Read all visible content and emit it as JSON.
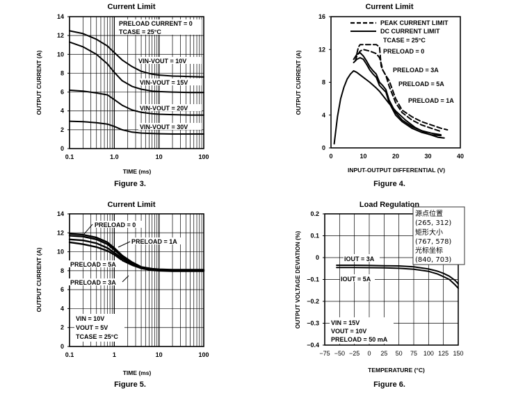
{
  "chart_data": [
    {
      "id": "fig3",
      "type": "line",
      "title": "Current Limit",
      "figure_label": "Figure 3.",
      "xlabel": "TIME (ms)",
      "ylabel": "OUTPUT CURRENT (A)",
      "xscale": "log",
      "xlim": [
        0.1,
        100
      ],
      "ylim": [
        0,
        14
      ],
      "xticks": [
        {
          "v": 0.1,
          "t": "0.1"
        },
        {
          "v": 1,
          "t": "1.0"
        },
        {
          "v": 10,
          "t": "10"
        },
        {
          "v": 100,
          "t": "100"
        }
      ],
      "yticks": [
        {
          "v": 0,
          "t": "0"
        },
        {
          "v": 2,
          "t": "2"
        },
        {
          "v": 4,
          "t": "4"
        },
        {
          "v": 6,
          "t": "6"
        },
        {
          "v": 8,
          "t": "8"
        },
        {
          "v": 10,
          "t": "10"
        },
        {
          "v": 12,
          "t": "12"
        },
        {
          "v": 14,
          "t": "14"
        }
      ],
      "conditions": [
        "PRELOAD CURRENT = 0",
        "TCASE = 25°C"
      ],
      "series": [
        {
          "name": "VIN-VOUT = 10V",
          "label": "VIN-VOUT = 10V",
          "x": [
            0.1,
            0.2,
            0.4,
            0.7,
            1.0,
            1.5,
            2.5,
            4,
            7,
            10,
            20,
            50,
            100
          ],
          "values": [
            12.5,
            12.2,
            11.6,
            10.9,
            10.2,
            9.4,
            8.7,
            8.2,
            7.9,
            7.8,
            7.7,
            7.65,
            7.6
          ]
        },
        {
          "name": "VIN-VOUT = 15V",
          "label": "VIN-VOUT = 15V",
          "x": [
            0.1,
            0.2,
            0.4,
            0.7,
            1.0,
            1.5,
            2.5,
            4,
            7,
            10,
            20,
            50,
            100
          ],
          "values": [
            11.3,
            10.8,
            10.0,
            9.0,
            8.1,
            7.2,
            6.6,
            6.3,
            6.1,
            6.05,
            6.0,
            5.95,
            5.95
          ]
        },
        {
          "name": "VIN-VOUT = 20V",
          "label": "VIN-VOUT = 20V",
          "x": [
            0.1,
            0.2,
            0.4,
            0.7,
            1.0,
            1.5,
            2.5,
            4,
            7,
            10,
            20,
            50,
            100
          ],
          "values": [
            6.2,
            6.1,
            5.9,
            5.7,
            5.2,
            4.6,
            4.1,
            3.85,
            3.7,
            3.65,
            3.6,
            3.55,
            3.55
          ]
        },
        {
          "name": "VIN-VOUT = 30V",
          "label": "VIN-VOUT = 30V",
          "x": [
            0.1,
            0.2,
            0.4,
            0.7,
            1.0,
            1.5,
            2.5,
            4,
            7,
            10,
            20,
            50,
            100
          ],
          "values": [
            2.9,
            2.85,
            2.75,
            2.6,
            2.35,
            2.0,
            1.75,
            1.65,
            1.6,
            1.58,
            1.55,
            1.55,
            1.55
          ]
        }
      ]
    },
    {
      "id": "fig4",
      "type": "line",
      "title": "Current Limit",
      "figure_label": "Figure 4.",
      "xlabel": "INPUT-OUTPUT DIFFERENTIAL (V)",
      "ylabel": "OUTPUT CURRENT (A)",
      "xscale": "linear",
      "xlim": [
        0,
        40
      ],
      "ylim": [
        0,
        16
      ],
      "xticks": [
        {
          "v": 0,
          "t": "0"
        },
        {
          "v": 10,
          "t": "10"
        },
        {
          "v": 20,
          "t": "20"
        },
        {
          "v": 30,
          "t": "30"
        },
        {
          "v": 40,
          "t": "40"
        }
      ],
      "yticks": [
        {
          "v": 0,
          "t": "0"
        },
        {
          "v": 4,
          "t": "4"
        },
        {
          "v": 8,
          "t": "8"
        },
        {
          "v": 12,
          "t": "12"
        },
        {
          "v": 16,
          "t": "16"
        }
      ],
      "legend": [
        "PEAK CURRENT LIMIT",
        "DC CURRENT LIMIT"
      ],
      "conditions": [
        "TCASE = 25°C"
      ],
      "annotations": [
        "PRELOAD = 0",
        "PRELOAD = 3A",
        "PRELOAD = 5A",
        "PRELOAD = 1A"
      ],
      "series": [
        {
          "name": "DC PRELOAD = 0",
          "style": "solid",
          "x": [
            1,
            2,
            3,
            4,
            5,
            6,
            7,
            8,
            9,
            10,
            12,
            14,
            15,
            16,
            18,
            20,
            23,
            26,
            30,
            33,
            35
          ],
          "values": [
            0.5,
            3.8,
            6.0,
            7.4,
            8.4,
            9.0,
            9.4,
            9.2,
            8.9,
            8.6,
            8.0,
            7.3,
            6.9,
            6.4,
            5.4,
            4.5,
            3.4,
            2.5,
            1.7,
            1.3,
            1.2
          ]
        },
        {
          "name": "DC PRELOAD = 3A",
          "style": "solid",
          "x": [
            7,
            8,
            9,
            10,
            11,
            12,
            13,
            14,
            15,
            16,
            17,
            18,
            20,
            22,
            25,
            28,
            31,
            34
          ],
          "values": [
            10.4,
            10.8,
            11.0,
            10.8,
            10.2,
            9.5,
            9.0,
            8.6,
            7.6,
            7.2,
            6.8,
            5.5,
            4.0,
            3.2,
            2.4,
            1.9,
            1.6,
            1.5
          ]
        },
        {
          "name": "DC PRELOAD = 5A",
          "style": "solid",
          "x": [
            7,
            8,
            9,
            10,
            11,
            12,
            13,
            14,
            15,
            16,
            17,
            18,
            20,
            22,
            25,
            28,
            31,
            34
          ],
          "values": [
            10.8,
            11.4,
            11.6,
            11.2,
            10.6,
            9.9,
            9.4,
            9.0,
            8.0,
            7.6,
            7.1,
            5.8,
            4.3,
            3.4,
            2.6,
            2.1,
            1.8,
            1.6
          ]
        },
        {
          "name": "PEAK PRELOAD = 0",
          "style": "dashed",
          "x": [
            7.5,
            8,
            9,
            10,
            12,
            14,
            15,
            15.6,
            16,
            17,
            18,
            20,
            22,
            25,
            28,
            31,
            34,
            36
          ],
          "values": [
            10.6,
            11.2,
            11.8,
            12.0,
            11.8,
            11.5,
            11.0,
            10.2,
            9.5,
            8.8,
            8.2,
            6.0,
            4.6,
            3.8,
            3.2,
            2.8,
            2.4,
            2.2
          ]
        },
        {
          "name": "PEAK PRELOAD = 1A",
          "style": "dashed",
          "x": [
            8,
            8.5,
            9,
            10,
            12,
            14,
            15,
            15.5,
            16,
            17,
            18,
            20,
            22,
            25,
            28,
            31,
            34
          ],
          "values": [
            11.5,
            12.3,
            12.6,
            12.6,
            12.6,
            12.6,
            12.3,
            10.0,
            9.5,
            8.8,
            7.5,
            5.5,
            4.3,
            3.4,
            2.8,
            2.4,
            2.0
          ]
        }
      ]
    },
    {
      "id": "fig5",
      "type": "line",
      "title": "Current Limit",
      "figure_label": "Figure 5.",
      "xlabel": "TIME (ms)",
      "ylabel": "OUTPUT CURRENT (A)",
      "xscale": "log",
      "xlim": [
        0.1,
        100
      ],
      "ylim": [
        0,
        14
      ],
      "xticks": [
        {
          "v": 0.1,
          "t": "0.1"
        },
        {
          "v": 1,
          "t": "1"
        },
        {
          "v": 10,
          "t": "10"
        },
        {
          "v": 100,
          "t": "100"
        }
      ],
      "yticks": [
        {
          "v": 0,
          "t": "0"
        },
        {
          "v": 2,
          "t": "2"
        },
        {
          "v": 4,
          "t": "4"
        },
        {
          "v": 6,
          "t": "6"
        },
        {
          "v": 8,
          "t": "8"
        },
        {
          "v": 10,
          "t": "10"
        },
        {
          "v": 12,
          "t": "12"
        },
        {
          "v": 14,
          "t": "14"
        }
      ],
      "conditions": [
        "VIN = 10V",
        "VOUT = 5V",
        "TCASE = 25°C"
      ],
      "annotations": [
        "PRELOAD = 0",
        "PRELOAD = 1A",
        "PRELOAD = 5A",
        "PRELOAD = 3A"
      ],
      "series": [
        {
          "name": "PRELOAD = 0",
          "x": [
            0.1,
            0.2,
            0.4,
            0.7,
            1.0,
            1.5,
            2.5,
            4,
            7,
            10,
            20,
            50,
            100
          ],
          "values": [
            11.9,
            11.8,
            11.5,
            11.0,
            10.4,
            9.6,
            8.9,
            8.4,
            8.2,
            8.15,
            8.1,
            8.1,
            8.1
          ]
        },
        {
          "name": "PRELOAD = 1A",
          "x": [
            0.1,
            0.2,
            0.4,
            0.7,
            1.0,
            1.5,
            2.5,
            4,
            7,
            10,
            20,
            50,
            100
          ],
          "values": [
            11.7,
            11.6,
            11.3,
            10.8,
            10.2,
            9.5,
            8.8,
            8.35,
            8.15,
            8.1,
            8.05,
            8.05,
            8.05
          ]
        },
        {
          "name": "PRELOAD = 3A",
          "x": [
            0.1,
            0.2,
            0.4,
            0.7,
            1.0,
            1.5,
            2.5,
            4,
            7,
            10,
            20,
            50,
            100
          ],
          "values": [
            11.3,
            11.2,
            10.9,
            10.4,
            9.9,
            9.3,
            8.7,
            8.3,
            8.1,
            8.05,
            8.0,
            8.0,
            8.0
          ]
        },
        {
          "name": "PRELOAD = 5A",
          "x": [
            0.1,
            0.2,
            0.4,
            0.7,
            1.0,
            1.5,
            2.5,
            4,
            7,
            10,
            20,
            50,
            100
          ],
          "values": [
            11.0,
            10.8,
            10.5,
            10.1,
            9.7,
            9.1,
            8.6,
            8.25,
            8.05,
            8.0,
            7.95,
            7.95,
            7.95
          ]
        }
      ]
    },
    {
      "id": "fig6",
      "type": "line",
      "title": "Load Regulation",
      "figure_label": "Figure 6.",
      "xlabel": "TEMPERATURE (°C)",
      "ylabel": "OUTPUT VOLTAGE DEVIATION (%)",
      "xscale": "linear",
      "xlim": [
        -75,
        150
      ],
      "ylim": [
        -0.4,
        0.2
      ],
      "xticks": [
        {
          "v": -75,
          "t": "−75"
        },
        {
          "v": -50,
          "t": "−50"
        },
        {
          "v": -25,
          "t": "−25"
        },
        {
          "v": 0,
          "t": "0"
        },
        {
          "v": 25,
          "t": "25"
        },
        {
          "v": 50,
          "t": "50"
        },
        {
          "v": 75,
          "t": "75"
        },
        {
          "v": 100,
          "t": "100"
        },
        {
          "v": 125,
          "t": "125"
        },
        {
          "v": 150,
          "t": "150"
        }
      ],
      "yticks": [
        {
          "v": 0.2,
          "t": "0.2"
        },
        {
          "v": 0.1,
          "t": "0.1"
        },
        {
          "v": 0,
          "t": "0"
        },
        {
          "v": -0.1,
          "t": "−0.1"
        },
        {
          "v": -0.2,
          "t": "−0.2"
        },
        {
          "v": -0.3,
          "t": "−0.3"
        },
        {
          "v": -0.4,
          "t": "−0.4"
        }
      ],
      "conditions": [
        "VIN = 15V",
        "VOUT = 10V",
        "PRELOAD = 50 mA"
      ],
      "series": [
        {
          "name": "IOUT = 3A",
          "label": "IOUT = 3A",
          "x": [
            -55,
            -25,
            0,
            25,
            50,
            75,
            100,
            115,
            125,
            135,
            145,
            150
          ],
          "values": [
            -0.035,
            -0.035,
            -0.036,
            -0.037,
            -0.038,
            -0.042,
            -0.052,
            -0.062,
            -0.072,
            -0.085,
            -0.105,
            -0.12
          ]
        },
        {
          "name": "IOUT = 5A",
          "label": "IOUT = 5A",
          "x": [
            -55,
            -25,
            0,
            25,
            50,
            75,
            100,
            115,
            125,
            135,
            145,
            150
          ],
          "values": [
            -0.045,
            -0.045,
            -0.046,
            -0.047,
            -0.049,
            -0.053,
            -0.063,
            -0.075,
            -0.087,
            -0.1,
            -0.125,
            -0.14
          ]
        }
      ]
    }
  ],
  "overlay": {
    "lines": [
      "源点位置",
      "(265, 312)",
      "矩形大小",
      "(767, 578)",
      "光标坐标",
      "(840, 703)"
    ]
  }
}
